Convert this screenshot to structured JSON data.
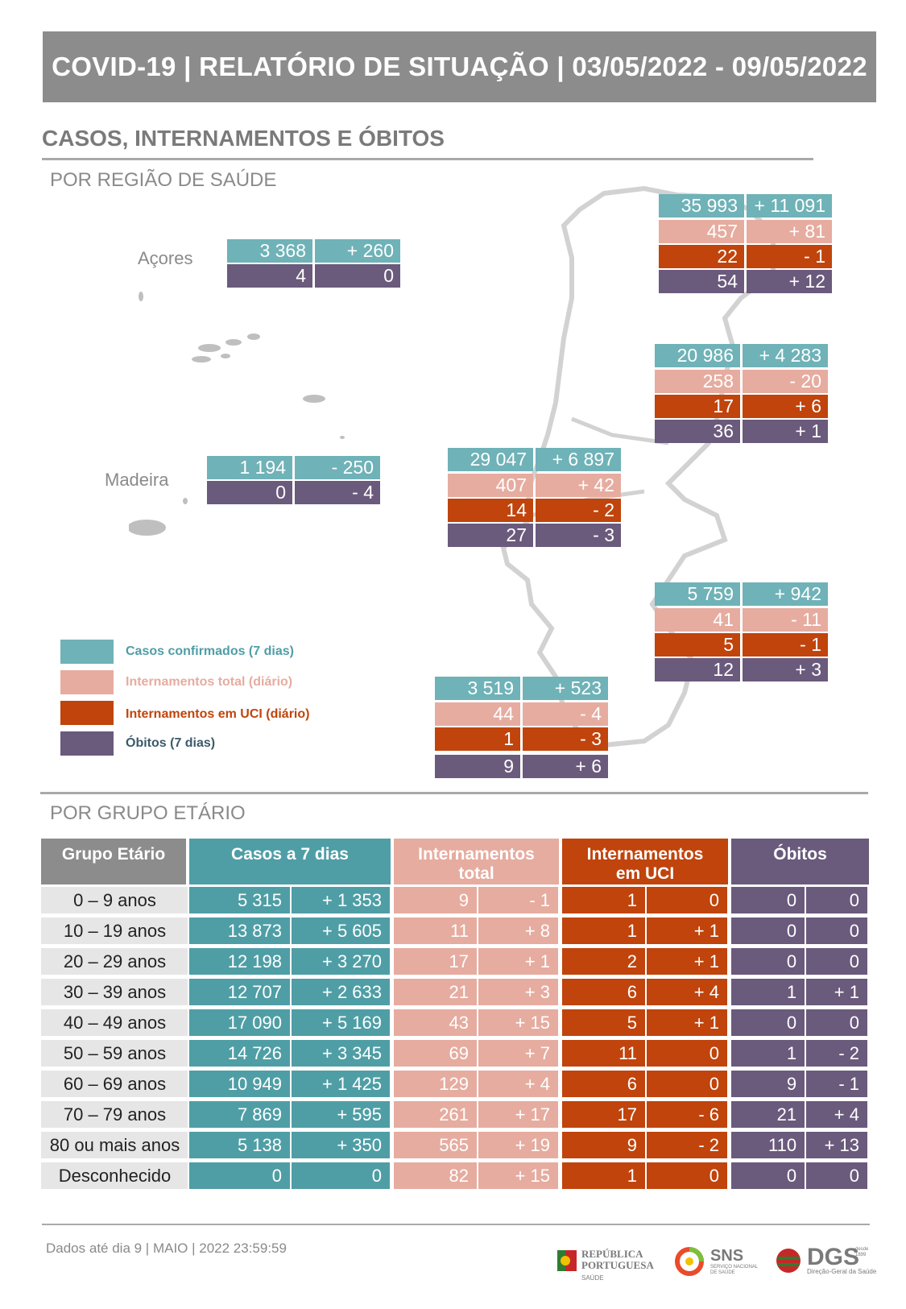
{
  "header": {
    "title": "COVID-19 | RELATÓRIO DE SITUAÇÃO | 03/05/2022 - 09/05/2022"
  },
  "section_title": "CASOS, INTERNAMENTOS E ÓBITOS",
  "region_subtitle": "POR REGIÃO DE SAÚDE",
  "age_subtitle": "POR GRUPO ETÁRIO",
  "colors": {
    "casos": "#6fb2b7",
    "internamentos": "#e6aca0",
    "uci": "#c0440c",
    "obitos": "#6a5a7c",
    "header": "#8c8c8c"
  },
  "regions": {
    "acores": {
      "label": "Açores",
      "casos": "3 368",
      "casos_var": "+ 260",
      "obitos": "4",
      "obitos_var": "0"
    },
    "madeira": {
      "label": "Madeira",
      "casos": "1 194",
      "casos_var": "- 250",
      "obitos": "0",
      "obitos_var": "- 4"
    },
    "norte": {
      "casos": "35 993",
      "casos_var": "+ 11 091",
      "intern": "457",
      "intern_var": "+ 81",
      "uci": "22",
      "uci_var": "- 1",
      "obitos": "54",
      "obitos_var": "+ 12"
    },
    "centro": {
      "casos": "20 986",
      "casos_var": "+ 4 283",
      "intern": "258",
      "intern_var": "- 20",
      "uci": "17",
      "uci_var": "+ 6",
      "obitos": "36",
      "obitos_var": "+ 1"
    },
    "lvt": {
      "casos": "29 047",
      "casos_var": "+ 6 897",
      "intern": "407",
      "intern_var": "+ 42",
      "uci": "14",
      "uci_var": "- 2",
      "obitos": "27",
      "obitos_var": "- 3"
    },
    "alentejo": {
      "casos": "5 759",
      "casos_var": "+ 942",
      "intern": "41",
      "intern_var": "- 11",
      "uci": "5",
      "uci_var": "- 1",
      "obitos": "12",
      "obitos_var": "+ 3"
    },
    "algarve": {
      "casos": "3 519",
      "casos_var": "+ 523",
      "intern": "44",
      "intern_var": "- 4",
      "uci": "1",
      "uci_var": "- 3",
      "obitos": "9",
      "obitos_var": "+ 6"
    }
  },
  "legend": {
    "casos": "Casos confirmados (7 dias)",
    "intern": "Internamentos total (diário)",
    "uci": "Internamentos em UCI (diário)",
    "obitos": "Óbitos (7 dias)"
  },
  "age_table": {
    "headers": {
      "grupo": "Grupo Etário",
      "casos": "Casos a 7 dias",
      "intern": "Internamentos total",
      "uci": "Internamentos em UCI",
      "obitos": "Óbitos"
    },
    "rows": [
      {
        "grupo": "0 – 9 anos",
        "c": "5 315",
        "cv": "+ 1 353",
        "i": "9",
        "iv": "- 1",
        "u": "1",
        "uv": "0",
        "o": "0",
        "ov": "0"
      },
      {
        "grupo": "10 – 19 anos",
        "c": "13 873",
        "cv": "+ 5 605",
        "i": "11",
        "iv": "+ 8",
        "u": "1",
        "uv": "+ 1",
        "o": "0",
        "ov": "0"
      },
      {
        "grupo": "20 – 29 anos",
        "c": "12 198",
        "cv": "+ 3 270",
        "i": "17",
        "iv": "+ 1",
        "u": "2",
        "uv": "+ 1",
        "o": "0",
        "ov": "0"
      },
      {
        "grupo": "30 – 39 anos",
        "c": "12 707",
        "cv": "+ 2 633",
        "i": "21",
        "iv": "+ 3",
        "u": "6",
        "uv": "+ 4",
        "o": "1",
        "ov": "+ 1"
      },
      {
        "grupo": "40 – 49 anos",
        "c": "17 090",
        "cv": "+ 5 169",
        "i": "43",
        "iv": "+ 15",
        "u": "5",
        "uv": "+ 1",
        "o": "0",
        "ov": "0"
      },
      {
        "grupo": "50 – 59 anos",
        "c": "14 726",
        "cv": "+ 3 345",
        "i": "69",
        "iv": "+ 7",
        "u": "11",
        "uv": "0",
        "o": "1",
        "ov": "- 2"
      },
      {
        "grupo": "60 – 69 anos",
        "c": "10 949",
        "cv": "+ 1 425",
        "i": "129",
        "iv": "+ 4",
        "u": "6",
        "uv": "0",
        "o": "9",
        "ov": "- 1"
      },
      {
        "grupo": "70 – 79 anos",
        "c": "7 869",
        "cv": "+ 595",
        "i": "261",
        "iv": "+ 17",
        "u": "17",
        "uv": "- 6",
        "o": "21",
        "ov": "+ 4"
      },
      {
        "grupo": "80 ou mais anos",
        "c": "5 138",
        "cv": "+ 350",
        "i": "565",
        "iv": "+ 19",
        "u": "9",
        "uv": "- 2",
        "o": "110",
        "ov": "+ 13"
      },
      {
        "grupo": "Desconhecido",
        "c": "0",
        "cv": "0",
        "i": "82",
        "iv": "+ 15",
        "u": "1",
        "uv": "0",
        "o": "0",
        "ov": "0"
      }
    ]
  },
  "footer": {
    "note": "Dados até dia 9 | MAIO | 2022 23:59:59"
  },
  "logos": {
    "republica": "REPÚBLICA PORTUGUESA",
    "republica_sub": "SAÚDE",
    "sns": "SNS",
    "sns_sub": "SERVIÇO NACIONAL DE SAÚDE",
    "dgs": "DGS",
    "dgs_sub": "Direção-Geral da Saúde",
    "dgs_since": "desde 1899"
  }
}
